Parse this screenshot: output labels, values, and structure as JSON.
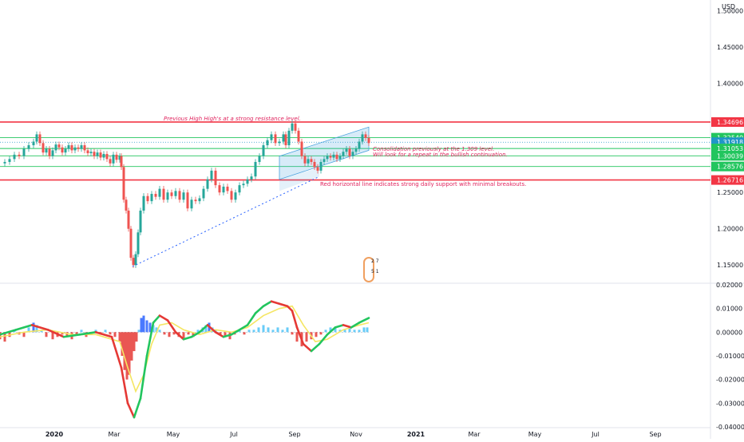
{
  "currency": "USD",
  "chart_data": [
    {
      "type": "candlestick",
      "y_ticks": [
        "1.50000",
        "1.45000",
        "1.40000",
        "1.25000",
        "1.20000",
        "1.15000"
      ],
      "ylim": [
        1.125,
        1.515
      ],
      "x_ticks": [
        "2020",
        "Mar",
        "May",
        "Jul",
        "Sep",
        "Nov",
        "2021",
        "Mar",
        "May",
        "Jul",
        "Sep"
      ],
      "levels": [
        {
          "label": "1.34696",
          "value": 1.34696,
          "color": "#f23645",
          "kind": "resistance"
        },
        {
          "label": "1.32540",
          "value": 1.3254,
          "color": "#22c55e",
          "kind": "support"
        },
        {
          "label": "1.31918",
          "value": 1.31918,
          "color": "#2196c8",
          "kind": "price"
        },
        {
          "label": "1.31053",
          "value": 1.31053,
          "color": "#22c55e",
          "kind": "support"
        },
        {
          "label": "1.30039",
          "value": 1.30039,
          "color": "#22c55e",
          "kind": "support"
        },
        {
          "label": "1.28576",
          "value": 1.28576,
          "color": "#22c55e",
          "kind": "support"
        },
        {
          "label": "1.26716",
          "value": 1.26716,
          "color": "#f23645",
          "kind": "support"
        }
      ],
      "price_path": [
        [
          0,
          1.29
        ],
        [
          6,
          1.292
        ],
        [
          12,
          1.296
        ],
        [
          18,
          1.302
        ],
        [
          24,
          1.3
        ],
        [
          30,
          1.31
        ],
        [
          36,
          1.315
        ],
        [
          42,
          1.32
        ],
        [
          46,
          1.33
        ],
        [
          50,
          1.318
        ],
        [
          54,
          1.305
        ],
        [
          58,
          1.31
        ],
        [
          62,
          1.3
        ],
        [
          66,
          1.308
        ],
        [
          70,
          1.316
        ],
        [
          74,
          1.312
        ],
        [
          78,
          1.305
        ],
        [
          82,
          1.31
        ],
        [
          86,
          1.315
        ],
        [
          90,
          1.308
        ],
        [
          94,
          1.312
        ],
        [
          98,
          1.31
        ],
        [
          102,
          1.315
        ],
        [
          106,
          1.308
        ],
        [
          110,
          1.304
        ],
        [
          114,
          1.306
        ],
        [
          118,
          1.3
        ],
        [
          122,
          1.305
        ],
        [
          126,
          1.298
        ],
        [
          130,
          1.303
        ],
        [
          134,
          1.296
        ],
        [
          138,
          1.29
        ],
        [
          142,
          1.302
        ],
        [
          146,
          1.295
        ],
        [
          150,
          1.3
        ],
        [
          152,
          1.285
        ],
        [
          155,
          1.24
        ],
        [
          158,
          1.225
        ],
        [
          161,
          1.2
        ],
        [
          164,
          1.16
        ],
        [
          167,
          1.15
        ],
        [
          170,
          1.165
        ],
        [
          173,
          1.195
        ],
        [
          176,
          1.225
        ],
        [
          180,
          1.245
        ],
        [
          185,
          1.238
        ],
        [
          190,
          1.248
        ],
        [
          195,
          1.244
        ],
        [
          200,
          1.255
        ],
        [
          205,
          1.24
        ],
        [
          210,
          1.25
        ],
        [
          215,
          1.245
        ],
        [
          220,
          1.252
        ],
        [
          225,
          1.24
        ],
        [
          230,
          1.25
        ],
        [
          235,
          1.228
        ],
        [
          240,
          1.24
        ],
        [
          245,
          1.238
        ],
        [
          250,
          1.242
        ],
        [
          255,
          1.255
        ],
        [
          260,
          1.268
        ],
        [
          265,
          1.28
        ],
        [
          270,
          1.26
        ],
        [
          275,
          1.25
        ],
        [
          280,
          1.258
        ],
        [
          285,
          1.252
        ],
        [
          290,
          1.24
        ],
        [
          295,
          1.25
        ],
        [
          300,
          1.26
        ],
        [
          305,
          1.262
        ],
        [
          310,
          1.268
        ],
        [
          315,
          1.272
        ],
        [
          320,
          1.292
        ],
        [
          325,
          1.3
        ],
        [
          330,
          1.315
        ],
        [
          335,
          1.322
        ],
        [
          340,
          1.33
        ],
        [
          345,
          1.318
        ],
        [
          350,
          1.32
        ],
        [
          355,
          1.33
        ],
        [
          358,
          1.315
        ],
        [
          362,
          1.335
        ],
        [
          366,
          1.345
        ],
        [
          370,
          1.335
        ],
        [
          374,
          1.32
        ],
        [
          378,
          1.3
        ],
        [
          382,
          1.29
        ],
        [
          386,
          1.296
        ],
        [
          390,
          1.292
        ],
        [
          394,
          1.285
        ],
        [
          398,
          1.28
        ],
        [
          402,
          1.292
        ],
        [
          406,
          1.296
        ],
        [
          410,
          1.3
        ],
        [
          414,
          1.298
        ],
        [
          418,
          1.302
        ],
        [
          422,
          1.296
        ],
        [
          426,
          1.3
        ],
        [
          430,
          1.306
        ],
        [
          434,
          1.31
        ],
        [
          438,
          1.3
        ],
        [
          442,
          1.306
        ],
        [
          446,
          1.31
        ],
        [
          450,
          1.32
        ],
        [
          454,
          1.33
        ],
        [
          458,
          1.325
        ],
        [
          462,
          1.318
        ]
      ]
    },
    {
      "type": "histogram-oscillator",
      "y_ticks": [
        "0.02000",
        "0.01000",
        "0.00000",
        "-0.01000",
        "-0.02000",
        "-0.03000",
        "-0.04000"
      ],
      "ylim": [
        -0.04,
        0.02
      ],
      "bars": [
        [
          0,
          -0.003
        ],
        [
          6,
          -0.004
        ],
        [
          12,
          -0.002
        ],
        [
          18,
          0.001
        ],
        [
          24,
          -0.001
        ],
        [
          30,
          -0.002
        ],
        [
          36,
          0.002
        ],
        [
          42,
          0.004
        ],
        [
          46,
          0.003
        ],
        [
          52,
          0.001
        ],
        [
          58,
          -0.002
        ],
        [
          66,
          -0.003
        ],
        [
          72,
          -0.002
        ],
        [
          78,
          -0.001
        ],
        [
          84,
          -0.002
        ],
        [
          90,
          -0.003
        ],
        [
          96,
          -0.001
        ],
        [
          102,
          0.001
        ],
        [
          108,
          -0.002
        ],
        [
          114,
          -0.001
        ],
        [
          120,
          0.001
        ],
        [
          126,
          -0.001
        ],
        [
          132,
          0.001
        ],
        [
          138,
          -0.001
        ],
        [
          144,
          -0.002
        ],
        [
          150,
          -0.004
        ],
        [
          153,
          -0.01
        ],
        [
          156,
          -0.016
        ],
        [
          159,
          -0.02
        ],
        [
          162,
          -0.018
        ],
        [
          165,
          -0.012
        ],
        [
          168,
          -0.008
        ],
        [
          171,
          -0.004
        ],
        [
          174,
          0.001
        ],
        [
          177,
          0.006
        ],
        [
          180,
          0.007
        ],
        [
          184,
          0.005
        ],
        [
          188,
          0.004
        ],
        [
          192,
          0.003
        ],
        [
          196,
          0.002
        ],
        [
          200,
          0.001
        ],
        [
          206,
          -0.001
        ],
        [
          212,
          -0.002
        ],
        [
          218,
          -0.001
        ],
        [
          224,
          -0.002
        ],
        [
          230,
          -0.003
        ],
        [
          236,
          -0.001
        ],
        [
          242,
          -0.002
        ],
        [
          248,
          0.001
        ],
        [
          254,
          0.002
        ],
        [
          258,
          0.003
        ],
        [
          262,
          0.004
        ],
        [
          266,
          0.002
        ],
        [
          270,
          0.001
        ],
        [
          276,
          -0.001
        ],
        [
          282,
          -0.002
        ],
        [
          288,
          -0.003
        ],
        [
          294,
          -0.001
        ],
        [
          300,
          0.001
        ],
        [
          306,
          -0.001
        ],
        [
          312,
          0.001
        ],
        [
          318,
          0.001
        ],
        [
          324,
          0.002
        ],
        [
          330,
          0.003
        ],
        [
          336,
          0.002
        ],
        [
          342,
          0.001
        ],
        [
          348,
          0.002
        ],
        [
          354,
          0.001
        ],
        [
          360,
          0.002
        ],
        [
          366,
          -0.001
        ],
        [
          372,
          -0.004
        ],
        [
          378,
          -0.006
        ],
        [
          384,
          -0.004
        ],
        [
          390,
          -0.003
        ],
        [
          396,
          -0.002
        ],
        [
          402,
          -0.001
        ],
        [
          408,
          0.001
        ],
        [
          414,
          0.002
        ],
        [
          420,
          0.002
        ],
        [
          426,
          0.001
        ],
        [
          432,
          0.001
        ],
        [
          438,
          0.002
        ],
        [
          444,
          0.001
        ],
        [
          450,
          0.001
        ],
        [
          456,
          0.002
        ],
        [
          460,
          0.002
        ]
      ],
      "line_fast": [
        [
          0,
          -0.001
        ],
        [
          20,
          0.001
        ],
        [
          40,
          0.003
        ],
        [
          60,
          0.001
        ],
        [
          80,
          -0.002
        ],
        [
          100,
          -0.001
        ],
        [
          120,
          0.0
        ],
        [
          140,
          -0.002
        ],
        [
          152,
          -0.015
        ],
        [
          160,
          -0.03
        ],
        [
          168,
          -0.036
        ],
        [
          176,
          -0.028
        ],
        [
          184,
          -0.01
        ],
        [
          192,
          0.004
        ],
        [
          200,
          0.007
        ],
        [
          210,
          0.005
        ],
        [
          220,
          0.0
        ],
        [
          230,
          -0.003
        ],
        [
          240,
          -0.002
        ],
        [
          250,
          0.0
        ],
        [
          260,
          0.003
        ],
        [
          270,
          0.0
        ],
        [
          280,
          -0.002
        ],
        [
          290,
          -0.001
        ],
        [
          300,
          0.001
        ],
        [
          310,
          0.003
        ],
        [
          320,
          0.008
        ],
        [
          330,
          0.011
        ],
        [
          340,
          0.013
        ],
        [
          350,
          0.012
        ],
        [
          360,
          0.011
        ],
        [
          366,
          0.009
        ],
        [
          372,
          0.002
        ],
        [
          380,
          -0.005
        ],
        [
          390,
          -0.008
        ],
        [
          400,
          -0.005
        ],
        [
          410,
          -0.001
        ],
        [
          420,
          0.002
        ],
        [
          430,
          0.003
        ],
        [
          440,
          0.002
        ],
        [
          450,
          0.004
        ],
        [
          462,
          0.006
        ]
      ],
      "line_slow": [
        [
          0,
          -0.002
        ],
        [
          30,
          0.0
        ],
        [
          60,
          0.001
        ],
        [
          90,
          -0.001
        ],
        [
          120,
          -0.001
        ],
        [
          150,
          -0.004
        ],
        [
          160,
          -0.015
        ],
        [
          170,
          -0.025
        ],
        [
          180,
          -0.018
        ],
        [
          190,
          -0.005
        ],
        [
          200,
          0.003
        ],
        [
          215,
          0.004
        ],
        [
          230,
          0.001
        ],
        [
          250,
          -0.001
        ],
        [
          270,
          0.001
        ],
        [
          290,
          0.0
        ],
        [
          310,
          0.002
        ],
        [
          330,
          0.007
        ],
        [
          350,
          0.01
        ],
        [
          366,
          0.011
        ],
        [
          380,
          0.003
        ],
        [
          395,
          -0.004
        ],
        [
          410,
          -0.003
        ],
        [
          430,
          0.001
        ],
        [
          450,
          0.003
        ],
        [
          462,
          0.004
        ]
      ]
    }
  ],
  "annotations": {
    "resistance_note": "Previous High High's at a strong resistance level.",
    "consolidation_note_1": "Consolidation previously at the 1.309 level.",
    "consolidation_note_2": "Will look for a repeat in the bullish continuation.",
    "support_note": "Red horizontal line indicates strong daily support with minimal breakouts."
  },
  "badge": {
    "top": "2 7",
    "bottom": "5 1"
  },
  "colors": {
    "bull": "#26a69a",
    "bear": "#ef5350",
    "resistance": "#f23645",
    "support": "#22c55e",
    "price": "#2196c8",
    "channel": "#4aa3df",
    "hist_pos_strong": "#2962ff",
    "hist_pos_weak": "#4fc3f7",
    "hist_neg": "#e53935",
    "line_fast_up": "#22c55e",
    "line_fast_down": "#e53935",
    "line_slow": "#f5e663"
  }
}
